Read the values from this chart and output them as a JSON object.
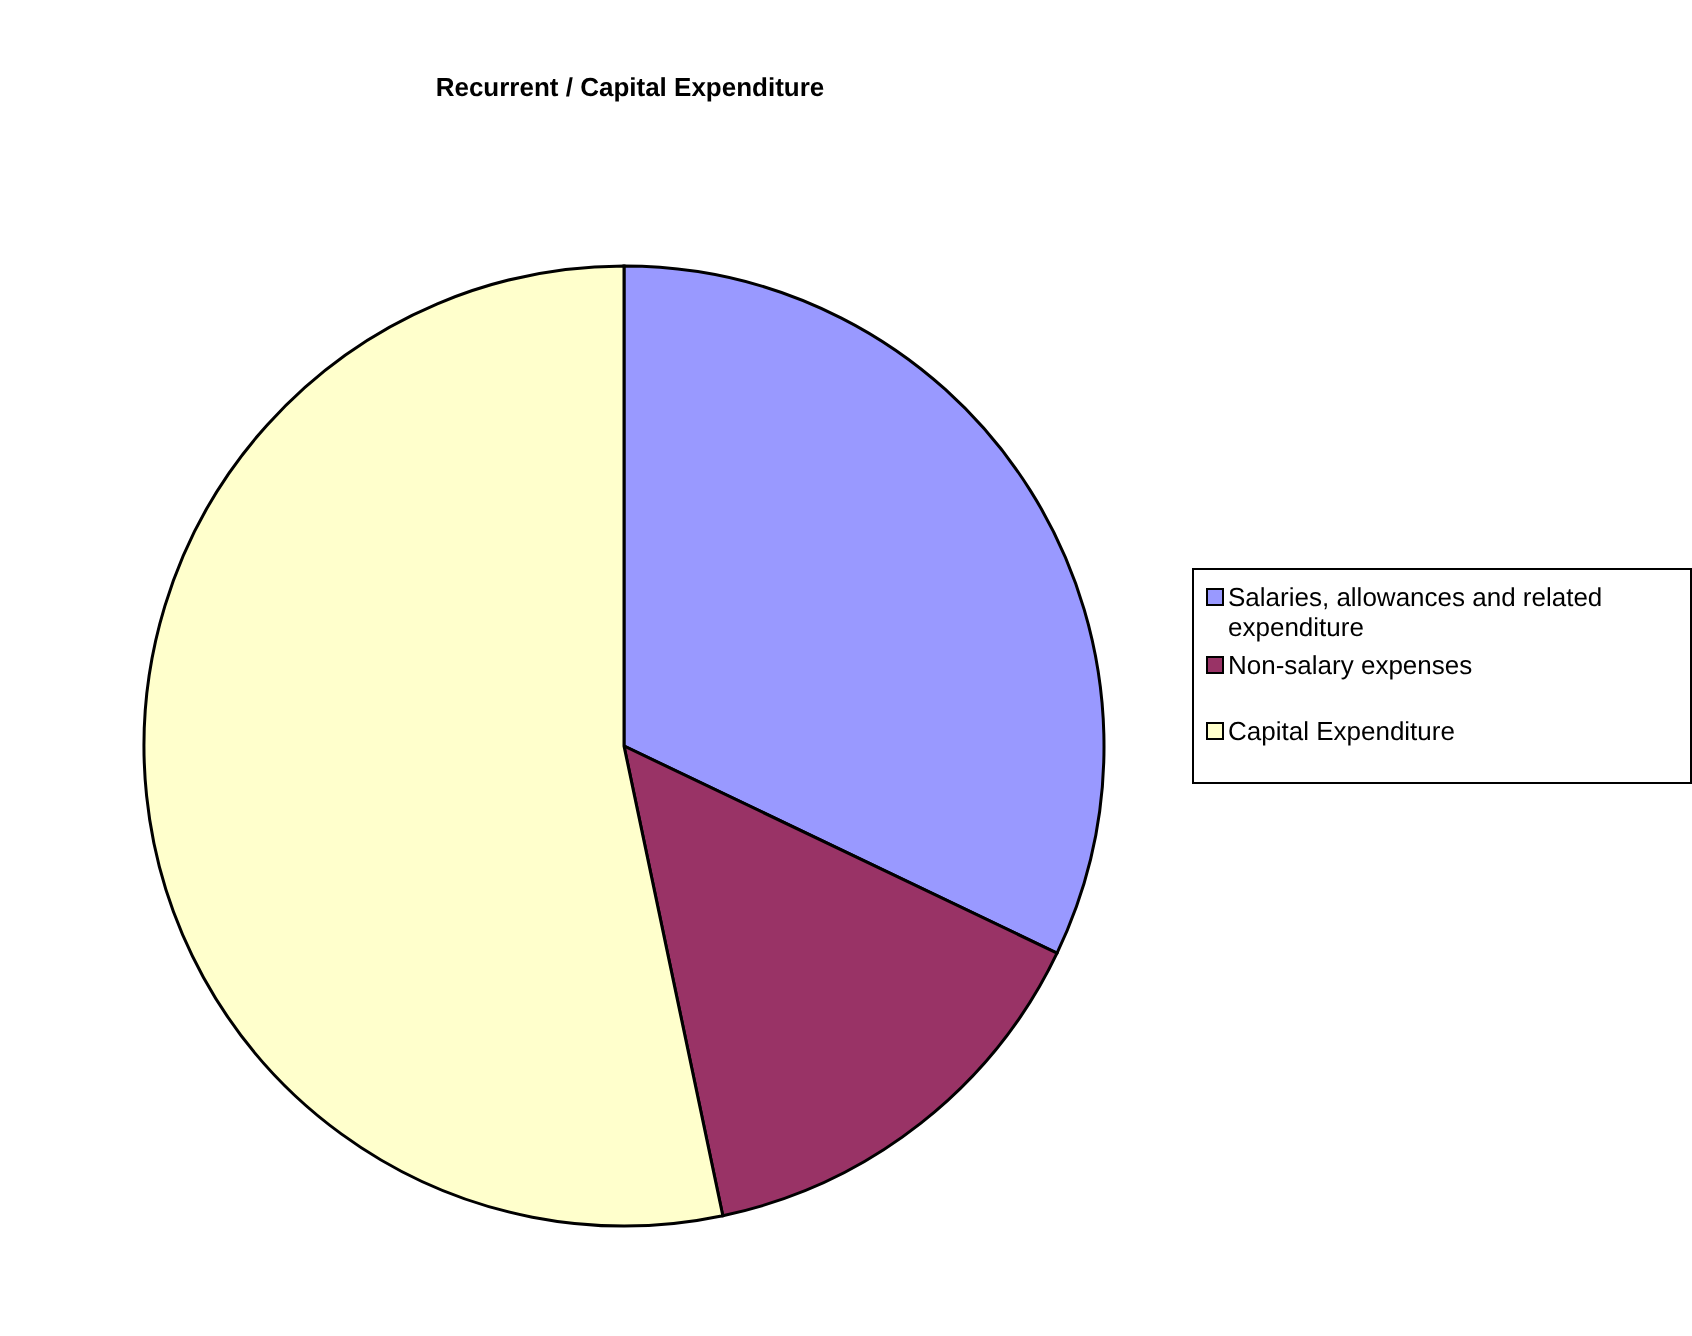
{
  "chart_data": {
    "type": "pie",
    "title": "Recurrent / Capital Expenditure",
    "categories": [
      "Salaries, allowances and related expenditure",
      "Non-salary expenses",
      "Capital Expenditure"
    ],
    "values": [
      32.1,
      14.6,
      53.3
    ],
    "colors": [
      "#9999ff",
      "#993366",
      "#ffffcc"
    ],
    "legend": "right"
  }
}
